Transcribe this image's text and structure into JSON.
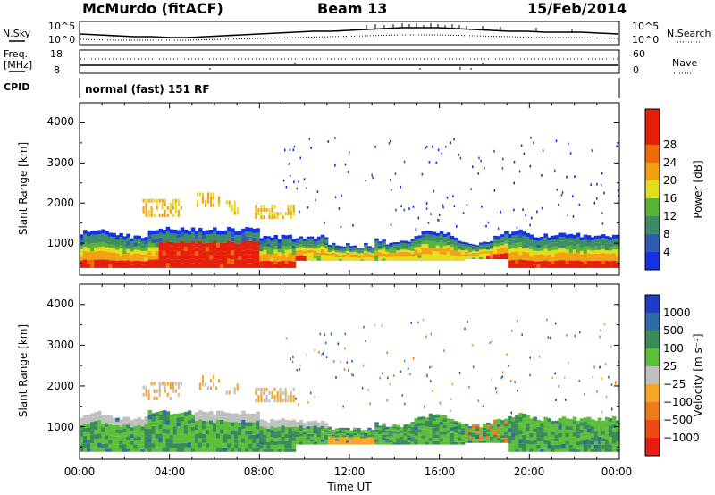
{
  "header": {
    "station": "McMurdo (fitACF)",
    "beam": "Beam 13",
    "date": "15/Feb/2014"
  },
  "meta_panels": {
    "nsky_label": "N.Sky",
    "nsearch_label": "N.Search",
    "noise_ticks": [
      "10^5",
      "10^0"
    ],
    "freq_label_1": "Freq.",
    "freq_label_2": "[MHz]",
    "freq_ticks": [
      "18",
      "8"
    ],
    "nave_label": "Nave",
    "nave_ticks": [
      "60",
      "0"
    ],
    "cpid_label": "CPID",
    "program": "normal (fast) 151 RF"
  },
  "chart_data": [
    {
      "type": "heatmap",
      "title": "",
      "xlabel": "",
      "ylabel": "Slant Range [km]",
      "xlim": [
        0,
        24
      ],
      "ylim": [
        200,
        4500
      ],
      "x_ticks": [],
      "y_ticks": [
        "1000",
        "2000",
        "3000",
        "4000"
      ],
      "colorbar": {
        "label": "Power [dB]",
        "ticks": [
          "4",
          "8",
          "12",
          "16",
          "20",
          "24",
          "28"
        ],
        "colors": [
          "#1432e6",
          "#2f5bb0",
          "#3c8c64",
          "#55b435",
          "#e6dc1e",
          "#f5a011",
          "#f06a0a",
          "#e61e0a"
        ]
      }
    },
    {
      "type": "heatmap",
      "title": "",
      "xlabel": "Time UT",
      "ylabel": "Slant Range [km]",
      "xlim": [
        0,
        24
      ],
      "ylim": [
        200,
        4500
      ],
      "x_ticks": [
        "00:00",
        "04:00",
        "08:00",
        "12:00",
        "16:00",
        "20:00",
        "00:00"
      ],
      "y_ticks": [
        "1000",
        "2000",
        "3000",
        "4000"
      ],
      "colorbar": {
        "label": "Velocity [m s⁻¹]",
        "ticks": [
          "1000",
          "500",
          "100",
          "25",
          "−25",
          "−100",
          "−500",
          "−1000"
        ],
        "colors": [
          "#1e3cc8",
          "#2d6aa8",
          "#3a8a5a",
          "#5cbf3a",
          "#c0c0c0",
          "#f5a623",
          "#f07a1a",
          "#ee4a12",
          "#e81c10"
        ]
      }
    }
  ]
}
